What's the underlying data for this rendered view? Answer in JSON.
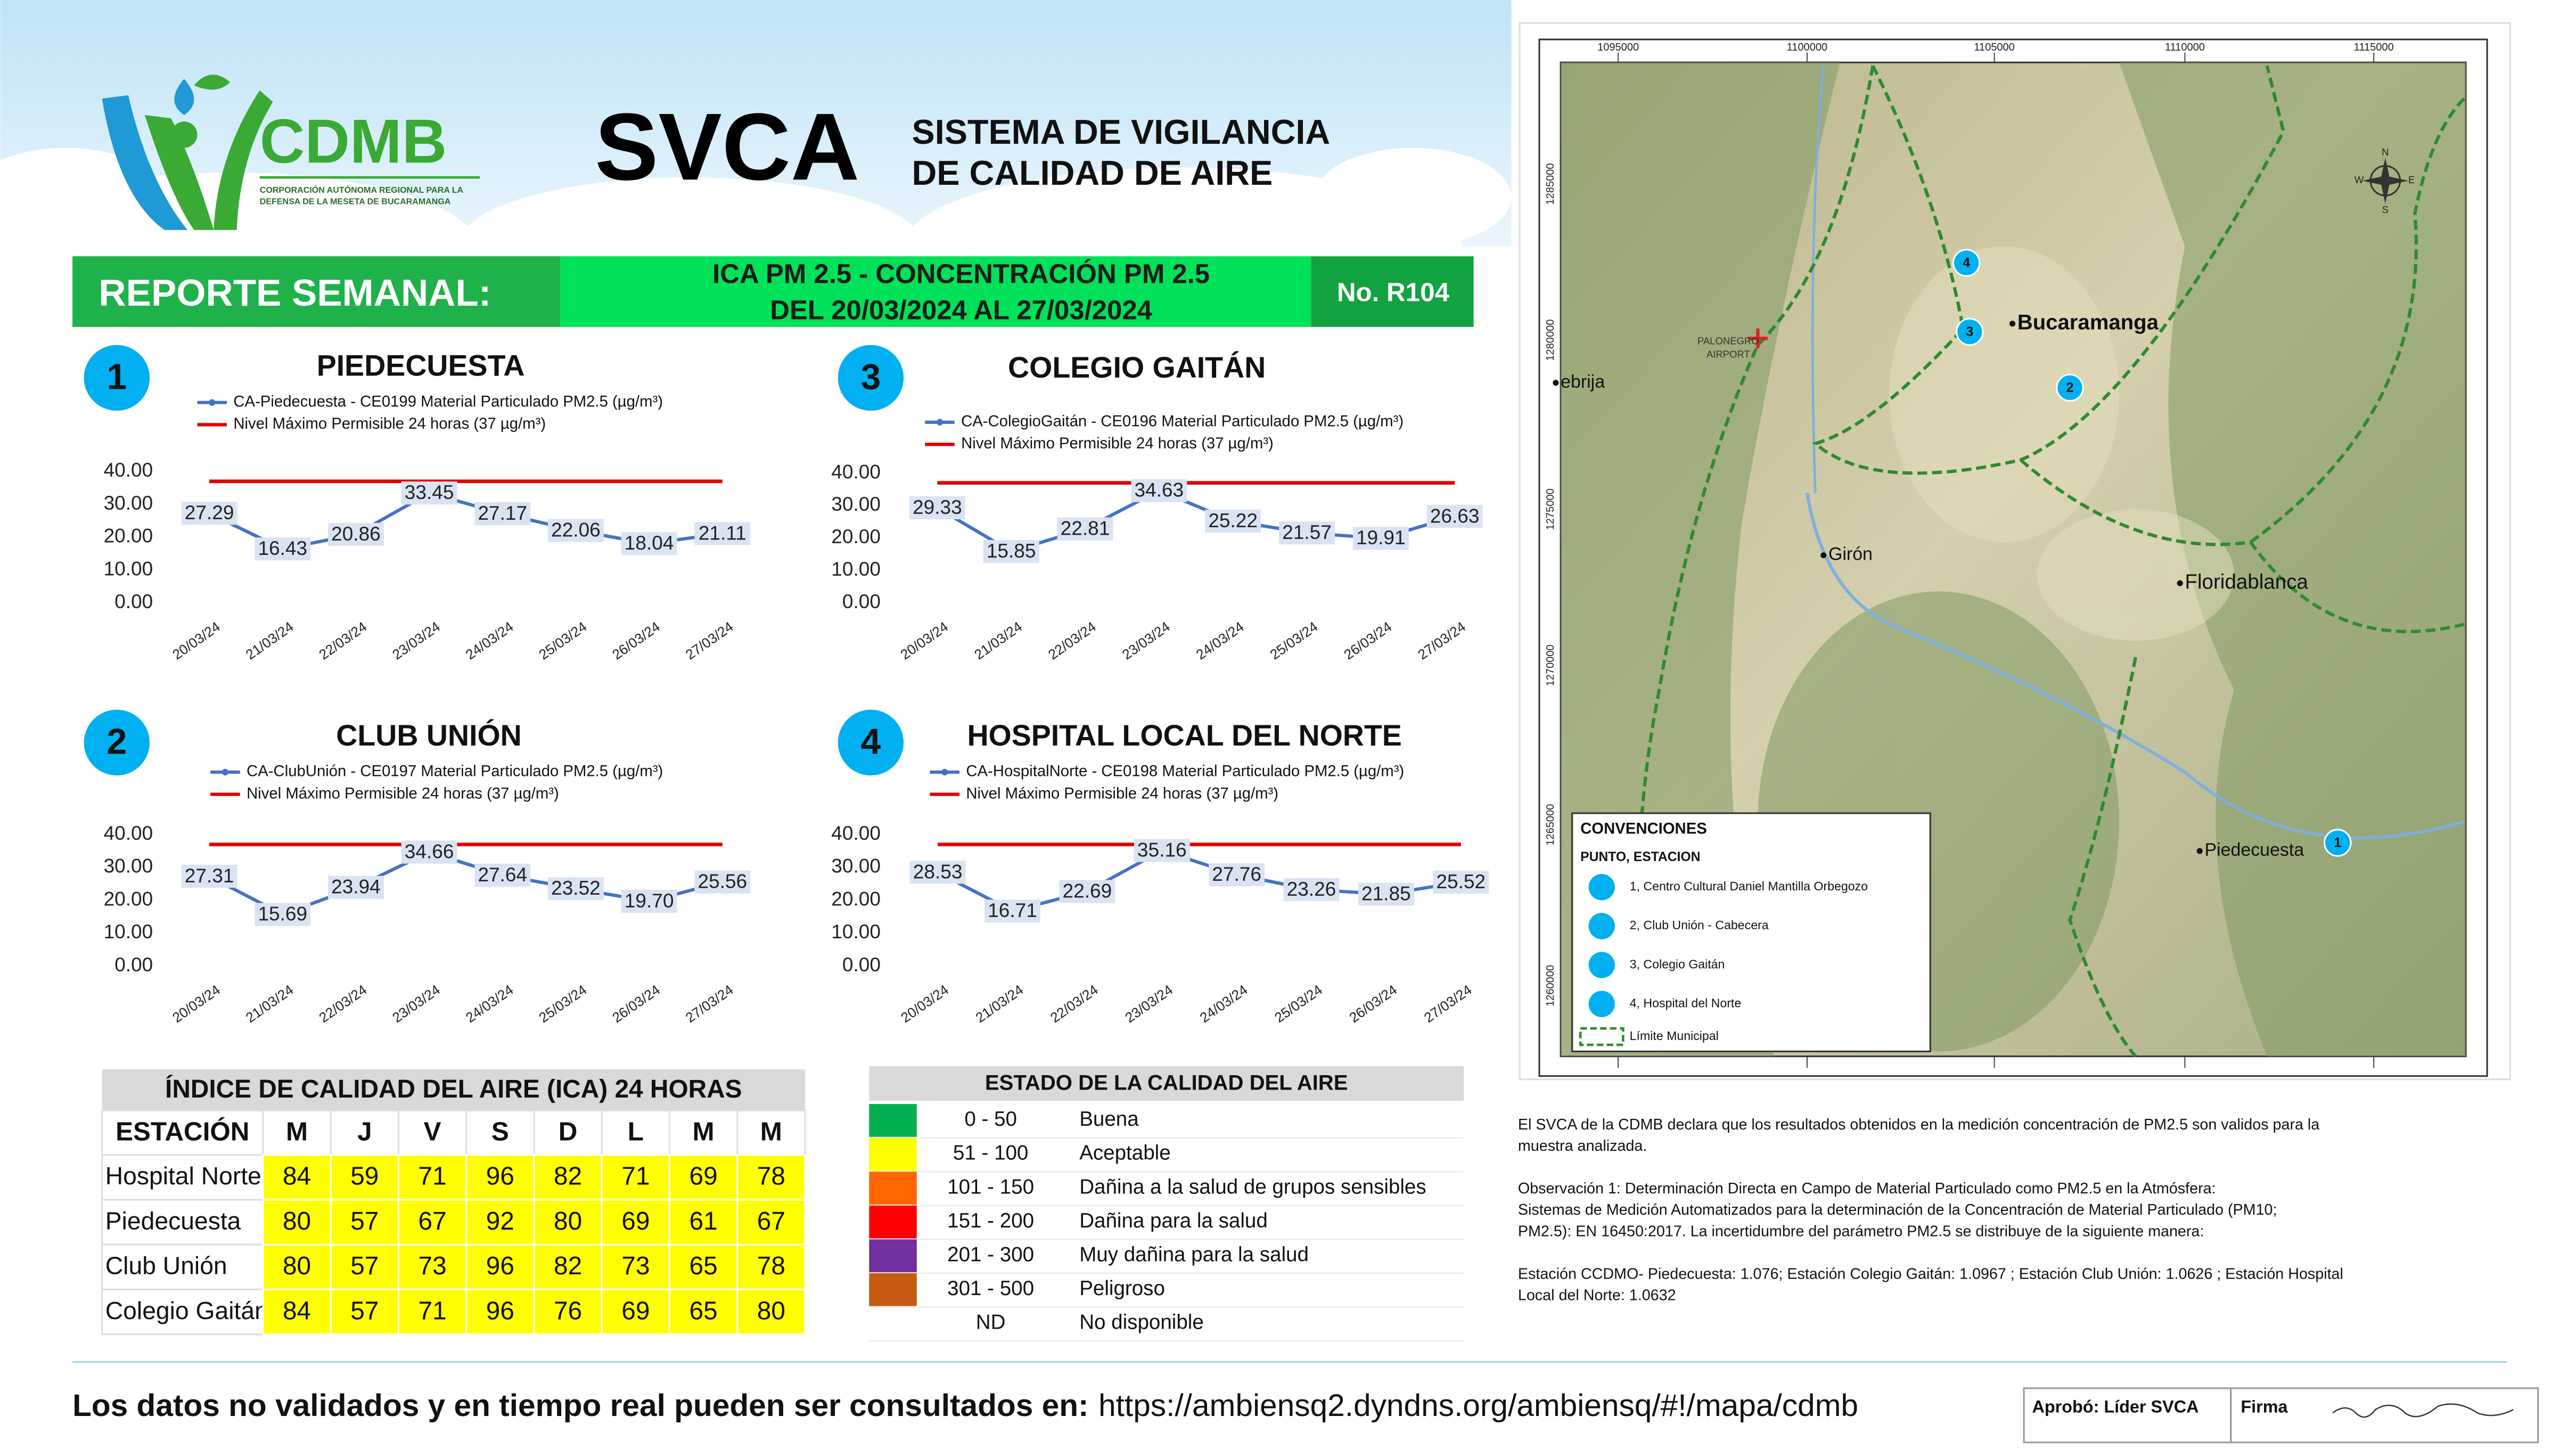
{
  "header": {
    "logo": "CDMB",
    "logo_subtitle": [
      "CORPORACIÓN AUTÓNOMA REGIONAL PARA LA",
      "DEFENSA DE LA MESETA DE BUCARAMANGA"
    ],
    "title": "SVCA",
    "subtitle": [
      "SISTEMA DE VIGILANCIA",
      "DE CALIDAD DE AIRE"
    ]
  },
  "banner": {
    "label": "REPORTE SEMANAL:",
    "topic": [
      "ICA PM 2.5 - CONCENTRACIÓN PM 2.5",
      "DEL 20/03/2024 AL 27/03/2024"
    ],
    "number": "No. R104"
  },
  "chart_data": [
    {
      "type": "line",
      "badge": "1",
      "title": "PIEDECUESTA",
      "categories": [
        "20/03/24",
        "21/03/24",
        "22/03/24",
        "23/03/24",
        "24/03/24",
        "25/03/24",
        "26/03/24",
        "27/03/24"
      ],
      "series": [
        {
          "name": "CA-Piedecuesta - CE0199 Material Particulado PM2.5 (µg/m³)",
          "color": "#4472c4",
          "values": [
            27.29,
            16.43,
            20.86,
            33.45,
            27.17,
            22.06,
            18.04,
            21.11
          ],
          "value_labels": [
            "27.29",
            "16.43",
            "20.86",
            "33.45",
            "27.17",
            "22.06",
            "18.04",
            "21.11"
          ]
        },
        {
          "name": "Nivel Máximo Permisible 24 horas (37 µg/m³)",
          "color": "#e00000",
          "values": [
            37,
            37,
            37,
            37,
            37,
            37,
            37,
            37
          ]
        }
      ],
      "ylim": [
        0,
        40
      ],
      "yticks": [
        {
          "value": 0,
          "label": "0.00"
        },
        {
          "value": 10,
          "label": "10.00"
        },
        {
          "value": 20,
          "label": "20.00"
        },
        {
          "value": 30,
          "label": "30.00"
        },
        {
          "value": 40,
          "label": "40.00"
        }
      ],
      "grid": false
    },
    {
      "type": "line",
      "badge": "2",
      "title": "CLUB UNIÓN",
      "categories": [
        "20/03/24",
        "21/03/24",
        "22/03/24",
        "23/03/24",
        "24/03/24",
        "25/03/24",
        "26/03/24",
        "27/03/24"
      ],
      "series": [
        {
          "name": "CA-ClubUnión - CE0197 Material Particulado PM2.5 (µg/m³)",
          "color": "#4472c4",
          "values": [
            27.31,
            15.69,
            23.94,
            34.66,
            27.64,
            23.52,
            19.7,
            25.56
          ],
          "value_labels": [
            "27.31",
            "15.69",
            "23.94",
            "34.66",
            "27.64",
            "23.52",
            "19.70",
            "25.56"
          ]
        },
        {
          "name": "Nivel Máximo Permisible 24 horas (37 µg/m³)",
          "color": "#e00000",
          "values": [
            37,
            37,
            37,
            37,
            37,
            37,
            37,
            37
          ]
        }
      ],
      "ylim": [
        0,
        40
      ],
      "yticks": [
        {
          "value": 0,
          "label": "0.00"
        },
        {
          "value": 10,
          "label": "10.00"
        },
        {
          "value": 20,
          "label": "20.00"
        },
        {
          "value": 30,
          "label": "30.00"
        },
        {
          "value": 40,
          "label": "40.00"
        }
      ],
      "grid": false
    },
    {
      "type": "line",
      "badge": "3",
      "title": "COLEGIO GAITÁN",
      "categories": [
        "20/03/24",
        "21/03/24",
        "22/03/24",
        "23/03/24",
        "24/03/24",
        "25/03/24",
        "26/03/24",
        "27/03/24"
      ],
      "series": [
        {
          "name": "CA-ColegioGaitán - CE0196 Material Particulado PM2.5 (µg/m³)",
          "color": "#4472c4",
          "values": [
            29.33,
            15.85,
            22.81,
            34.63,
            25.22,
            21.57,
            19.91,
            26.63
          ],
          "value_labels": [
            "29.33",
            "15.85",
            "22.81",
            "34.63",
            "25.22",
            "21.57",
            "19.91",
            "26.63"
          ]
        },
        {
          "name": "Nivel Máximo Permisible 24 horas (37 µg/m³)",
          "color": "#e00000",
          "values": [
            37,
            37,
            37,
            37,
            37,
            37,
            37,
            37
          ]
        }
      ],
      "ylim": [
        0,
        40
      ],
      "yticks": [
        {
          "value": 0,
          "label": "0.00"
        },
        {
          "value": 10,
          "label": "10.00"
        },
        {
          "value": 20,
          "label": "20.00"
        },
        {
          "value": 30,
          "label": "30.00"
        },
        {
          "value": 40,
          "label": "40.00"
        }
      ],
      "grid": false
    },
    {
      "type": "line",
      "badge": "4",
      "title": "HOSPITAL LOCAL DEL NORTE",
      "categories": [
        "20/03/24",
        "21/03/24",
        "22/03/24",
        "23/03/24",
        "24/03/24",
        "25/03/24",
        "26/03/24",
        "27/03/24"
      ],
      "series": [
        {
          "name": "CA-HospitalNorte - CE0198 Material Particulado PM2.5 (µg/m³)",
          "color": "#4472c4",
          "values": [
            28.53,
            16.71,
            22.69,
            35.16,
            27.76,
            23.26,
            21.85,
            25.52
          ],
          "value_labels": [
            "28.53",
            "16.71",
            "22.69",
            "35.16",
            "27.76",
            "23.26",
            "21.85",
            "25.52"
          ]
        },
        {
          "name": "Nivel Máximo Permisible 24 horas (37 µg/m³)",
          "color": "#e00000",
          "values": [
            37,
            37,
            37,
            37,
            37,
            37,
            37,
            37
          ]
        }
      ],
      "ylim": [
        0,
        40
      ],
      "yticks": [
        {
          "value": 0,
          "label": "0.00"
        },
        {
          "value": 10,
          "label": "10.00"
        },
        {
          "value": 20,
          "label": "20.00"
        },
        {
          "value": 30,
          "label": "30.00"
        },
        {
          "value": 40,
          "label": "40.00"
        }
      ],
      "grid": false
    }
  ],
  "ica_table": {
    "title": "ÍNDICE DE CALIDAD DEL AIRE (ICA) 24 HORAS",
    "header": [
      "ESTACIÓN",
      "M",
      "J",
      "V",
      "S",
      "D",
      "L",
      "M",
      "M"
    ],
    "rows": [
      [
        "Hospital Norte",
        84,
        59,
        71,
        96,
        82,
        71,
        69,
        78
      ],
      [
        "Piedecuesta",
        80,
        57,
        67,
        92,
        80,
        69,
        61,
        67
      ],
      [
        "Club Unión",
        80,
        57,
        73,
        96,
        82,
        73,
        65,
        78
      ],
      [
        "Colegio Gaitán",
        84,
        57,
        71,
        96,
        76,
        69,
        65,
        80
      ]
    ]
  },
  "status_table": {
    "title": "ESTADO DE LA CALIDAD DEL AIRE",
    "rows": [
      {
        "color": "#00b050",
        "range": "0 - 50",
        "label": "Buena"
      },
      {
        "color": "#ffff00",
        "range": "51 - 100",
        "label": "Aceptable"
      },
      {
        "color": "#ff6600",
        "range": "101 - 150",
        "label": "Dañina a la salud de grupos sensibles"
      },
      {
        "color": "#ff0000",
        "range": "151 - 200",
        "label": "Dañina para la salud"
      },
      {
        "color": "#7030a0",
        "range": "201 - 300",
        "label": "Muy dañina para la salud"
      },
      {
        "color": "#c55a11",
        "range": "301 - 500",
        "label": "Peligroso"
      },
      {
        "range": "ND",
        "label": "No disponible"
      }
    ]
  },
  "map": {
    "x_labels": [
      1095000,
      1100000,
      1105000,
      1110000,
      1115000
    ],
    "y_labels": [
      1285000,
      1280000,
      1275000,
      1270000,
      1265000,
      1260000
    ],
    "airport": [
      "PALONEGRO",
      "AIRPORT"
    ],
    "places": [
      "Bucaramanga",
      "Girón",
      "Floridablanca",
      "Piedecuesta",
      "ebrija"
    ],
    "markers": [
      "1",
      "2",
      "3",
      "4"
    ],
    "compass": [
      "N",
      "S",
      "E",
      "W"
    ],
    "legend": {
      "title": "CONVENCIONES",
      "subtitle": "PUNTO, ESTACION",
      "items": [
        "1, Centro Cultural Daniel Mantilla Orbegozo",
        "2, Club Unión - Cabecera",
        "3, Colegio Gaitán",
        "4, Hospital del Norte"
      ],
      "boundary": "Límite Municipal"
    }
  },
  "notes": [
    [
      "El SVCA  de la CDMB declara que los resultados obtenidos en la medición concentración de PM2.5 son validos para la",
      "muestra  analizada."
    ],
    [
      "Observación 1: Determinación Directa en Campo de Material Particulado como PM2.5 en la Atmósfera:",
      "Sistemas de Medición Automatizados para la  determinación de la Concentración de Material Particulado (PM10;",
      "PM2.5): EN 16450:2017. La incertidumbre del parámetro PM2.5 se distribuye de la siguiente manera:"
    ],
    [
      "Estación CCDMO- Piedecuesta: 1.076; Estación Colegio Gaitán: 1.0967 ; Estación Club Unión: 1.0626 ; Estación Hospital",
      "Local del Norte: 1.0632"
    ]
  ],
  "footer": {
    "text": "Los datos no validados y en tiempo real pueden ser consultados en:",
    "url": "https://ambiensq2.dyndns.org/ambiensq/#!/mapa/cdmb",
    "approval": "Aprobó: Líder SVCA",
    "signature": "Firma"
  }
}
